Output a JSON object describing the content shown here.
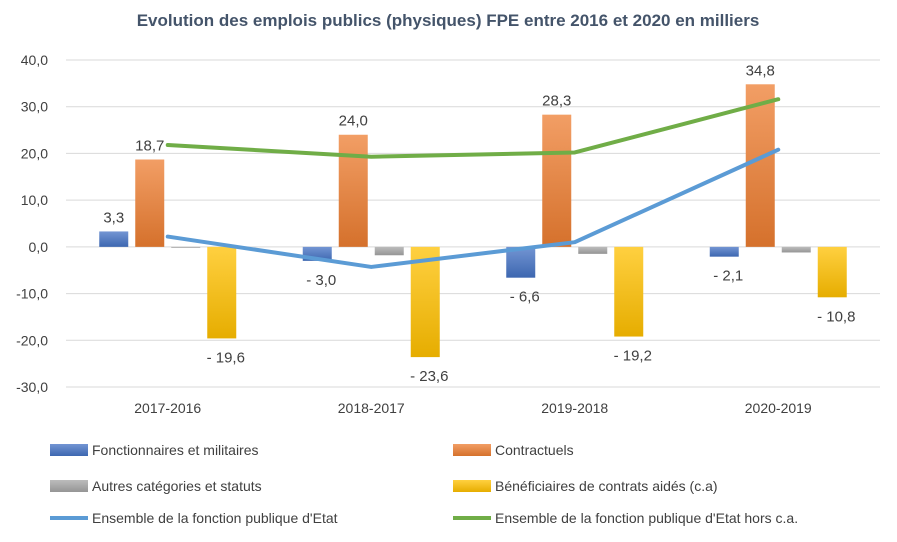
{
  "chart_data": {
    "type": "bar",
    "title": "Evolution des emplois publics (physiques) FPE entre 2016 et 2020 en milliers",
    "xlabel": "",
    "ylabel": "",
    "ylim": [
      -30,
      40
    ],
    "yticks": [
      "40,0",
      "30,0",
      "20,0",
      "10,0",
      "0,0",
      "-10,0",
      "-20,0",
      "-30,0"
    ],
    "ytick_values": [
      40,
      30,
      20,
      10,
      0,
      -10,
      -20,
      -30
    ],
    "categories": [
      "2017-2016",
      "2018-2017",
      "2019-2018",
      "2020-2019"
    ],
    "grid": true,
    "legend_position": "bottom",
    "bar_series": [
      {
        "name": "Fonctionnaires et militaires",
        "color": "#4472c4",
        "values": [
          3.3,
          -3.0,
          -6.6,
          -2.1
        ],
        "labels": [
          "3,3",
          "- 3,0",
          "- 6,6",
          "- 2,1"
        ]
      },
      {
        "name": "Contractuels",
        "color": "#ed7d31",
        "values": [
          18.7,
          24.0,
          28.3,
          34.8
        ],
        "labels": [
          "18,7",
          "24,0",
          "28,3",
          "34,8"
        ]
      },
      {
        "name": "Autres catégories et statuts",
        "color": "#a5a5a5",
        "values": [
          -0.2,
          -1.8,
          -1.5,
          -1.2
        ],
        "labels": [
          "",
          "",
          "",
          ""
        ]
      },
      {
        "name": "Bénéficiaires de contrats aidés (c.a)",
        "color": "#ffc000",
        "values": [
          -19.6,
          -23.6,
          -19.2,
          -10.8
        ],
        "labels": [
          "- 19,6",
          "- 23,6",
          "- 19,2",
          "- 10,8"
        ]
      }
    ],
    "line_series": [
      {
        "name": "Ensemble de la fonction publique d'Etat",
        "color": "#5b9bd5",
        "values": [
          2.2,
          -4.3,
          1.0,
          20.8
        ]
      },
      {
        "name": "Ensemble de la fonction publique d'Etat hors c.a.",
        "color": "#70ad47",
        "values": [
          21.8,
          19.3,
          20.2,
          31.6
        ]
      }
    ]
  }
}
